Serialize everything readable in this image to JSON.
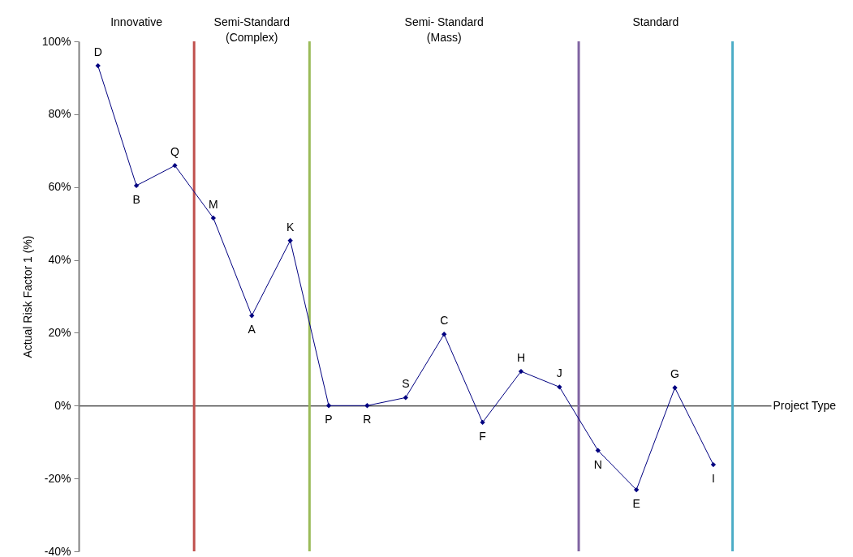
{
  "chart_data": {
    "type": "line",
    "xlabel": "Project Type",
    "ylabel": "Actual Risk Factor 1 (%)",
    "categories": [
      null,
      null,
      null,
      null,
      null,
      null,
      null,
      null,
      null,
      null,
      null,
      null,
      null,
      null,
      null,
      null,
      null
    ],
    "series": [
      {
        "color": "#000080",
        "values": [
          93.3,
          60.4,
          65.9,
          51.5,
          24.7,
          45.3,
          0,
          0,
          2.2,
          19.6,
          -4.6,
          9.4,
          5.1,
          -12.3,
          -23.1,
          4.9,
          -16.2
        ],
        "value_labels": [
          "D",
          "B",
          "Q",
          "M",
          "A",
          "K",
          "P",
          "R",
          "S",
          "C",
          "F",
          "H",
          "J",
          "N",
          "E",
          "G",
          "I"
        ]
      }
    ],
    "ylim": [
      -40,
      100
    ],
    "yticks": [
      {
        "value": -40,
        "label": "-40%"
      },
      {
        "value": -20,
        "label": "-20%"
      },
      {
        "value": 0,
        "label": "0%"
      },
      {
        "value": 20,
        "label": "20%"
      },
      {
        "value": 40,
        "label": "40%"
      },
      {
        "value": 60,
        "label": "60%"
      },
      {
        "value": 80,
        "label": "80%"
      },
      {
        "value": 100,
        "label": "100%"
      }
    ],
    "tick_labels": "y",
    "marker": "diamond",
    "grid": false,
    "annotations": [
      "Innovative",
      "Semi-Standard\n(Complex)",
      "Semi- Standard\n(Mass)",
      "Standard"
    ]
  }
}
